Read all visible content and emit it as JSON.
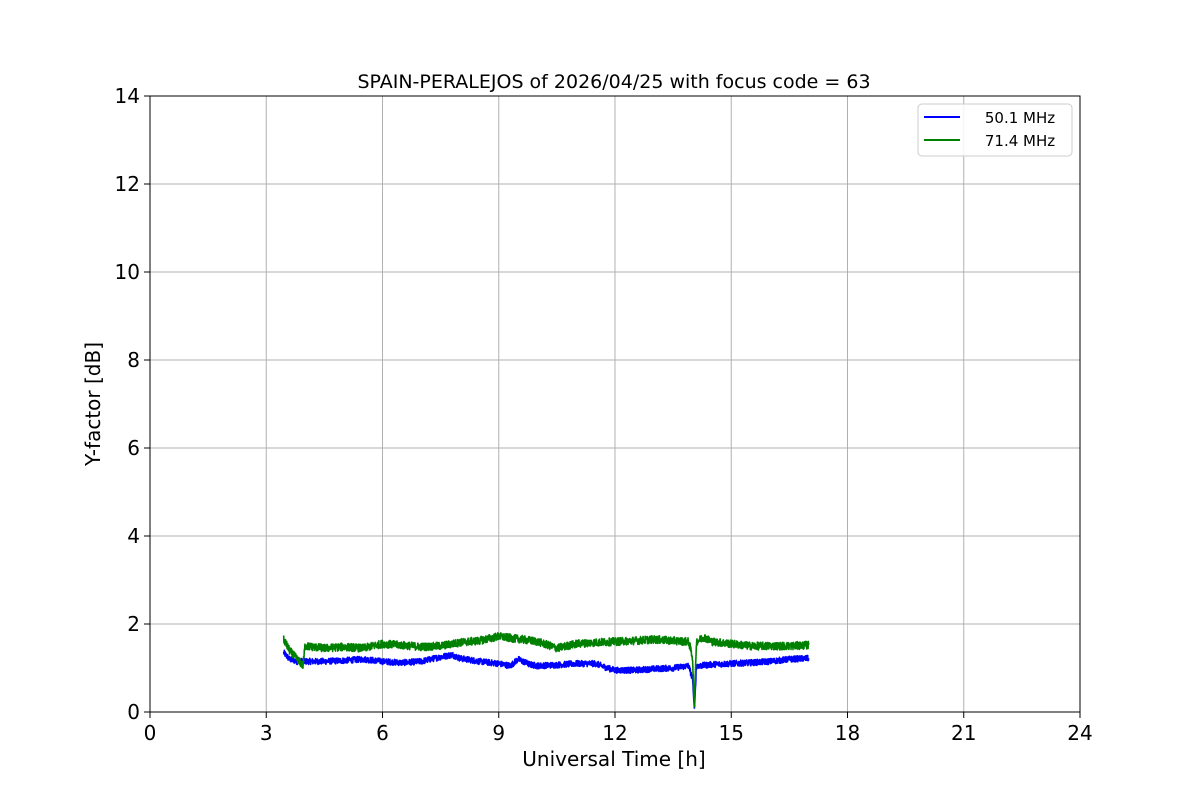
{
  "chart_data": {
    "type": "line",
    "title": "SPAIN-PERALEJOS of 2026/04/25 with focus code = 63",
    "xlabel": "Universal Time [h]",
    "ylabel": "Y-factor [dB]",
    "xlim": [
      0,
      24
    ],
    "ylim": [
      0,
      14
    ],
    "xticks": [
      0,
      3,
      6,
      9,
      12,
      15,
      18,
      21,
      24
    ],
    "yticks": [
      0,
      2,
      4,
      6,
      8,
      10,
      12,
      14
    ],
    "grid": true,
    "legend_position": "top-right",
    "series": [
      {
        "name": "50.1 MHz",
        "color": "#0000ff",
        "x": [
          3.45,
          3.6,
          3.8,
          4.0,
          4.5,
          5.0,
          5.5,
          6.0,
          6.5,
          7.0,
          7.5,
          7.8,
          8.0,
          8.5,
          9.0,
          9.3,
          9.5,
          9.8,
          10.0,
          10.5,
          11.0,
          11.5,
          11.8,
          12.0,
          12.5,
          13.0,
          13.5,
          13.9,
          14.0,
          14.05,
          14.1,
          14.2,
          14.5,
          15.0,
          15.5,
          16.0,
          16.5,
          17.0
        ],
        "y": [
          1.35,
          1.2,
          1.15,
          1.15,
          1.15,
          1.17,
          1.2,
          1.15,
          1.12,
          1.15,
          1.25,
          1.3,
          1.22,
          1.15,
          1.1,
          1.05,
          1.2,
          1.08,
          1.05,
          1.07,
          1.1,
          1.1,
          1.0,
          0.95,
          0.95,
          0.98,
          1.0,
          1.05,
          0.75,
          0.05,
          1.05,
          1.05,
          1.08,
          1.1,
          1.12,
          1.15,
          1.2,
          1.22
        ]
      },
      {
        "name": "71.4 MHz",
        "color": "#008000",
        "x": [
          3.45,
          3.6,
          3.8,
          3.95,
          4.0,
          4.5,
          5.0,
          5.5,
          6.0,
          6.5,
          7.0,
          7.5,
          8.0,
          8.5,
          9.0,
          9.3,
          9.6,
          10.0,
          10.5,
          11.0,
          11.5,
          12.0,
          12.5,
          13.0,
          13.5,
          13.9,
          14.0,
          14.05,
          14.1,
          14.3,
          14.5,
          15.0,
          15.5,
          16.0,
          16.5,
          17.0
        ],
        "y": [
          1.65,
          1.4,
          1.2,
          1.05,
          1.5,
          1.45,
          1.48,
          1.45,
          1.55,
          1.52,
          1.48,
          1.5,
          1.58,
          1.62,
          1.72,
          1.68,
          1.65,
          1.6,
          1.45,
          1.55,
          1.58,
          1.6,
          1.62,
          1.65,
          1.62,
          1.6,
          1.25,
          0.05,
          1.6,
          1.7,
          1.6,
          1.55,
          1.5,
          1.5,
          1.5,
          1.52
        ]
      }
    ]
  }
}
